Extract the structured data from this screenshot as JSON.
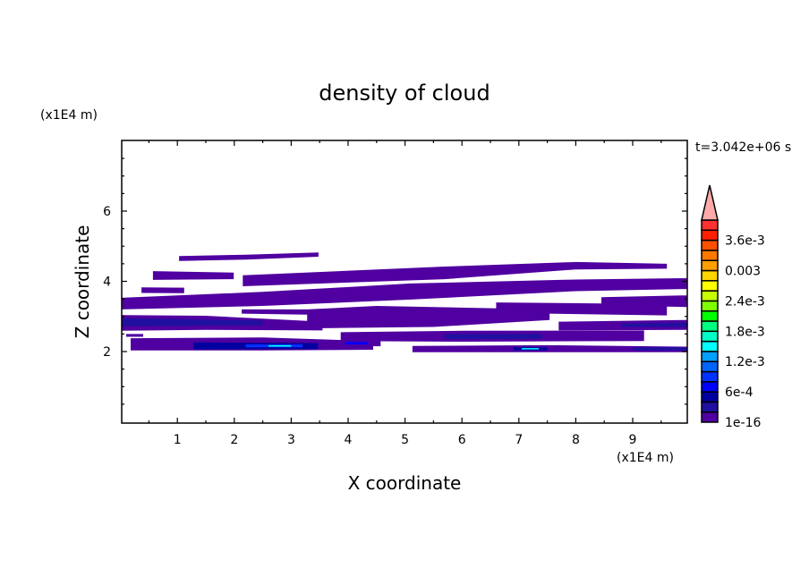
{
  "chart_data": {
    "type": "contour",
    "title": "density of cloud",
    "xlabel": "X coordinate",
    "ylabel": "Z coordinate",
    "x_unit": "(x1E4 m)",
    "y_unit": "(x1E4 m)",
    "time_label": "t=3.042e+06 s",
    "xlim": [
      0,
      10
    ],
    "ylim": [
      0,
      8
    ],
    "x_ticks": [
      "1",
      "2",
      "3",
      "4",
      "5",
      "6",
      "7",
      "8",
      "9"
    ],
    "y_ticks": [
      "2",
      "4",
      "6"
    ],
    "grid": false,
    "colorbar": {
      "placement": "right",
      "levels": [
        1e-16,
        0.0002,
        0.0004,
        0.0006,
        0.0008,
        0.001,
        0.0012,
        0.0014,
        0.0016,
        0.0018,
        0.002,
        0.0022,
        0.0024,
        0.0026,
        0.0028,
        0.003,
        0.0032,
        0.0034,
        0.0036,
        0.0038
      ],
      "labels": [
        "1e-16",
        "6e-4",
        "1.2e-3",
        "1.8e-3",
        "2.4e-3",
        "0.003",
        "3.6e-3"
      ],
      "label_level_indices": [
        0,
        3,
        6,
        9,
        12,
        15,
        18
      ],
      "colors": [
        "#5000a0",
        "#2010a0",
        "#0000a0",
        "#0000ff",
        "#0032ff",
        "#0064ff",
        "#00a0ff",
        "#00ffff",
        "#00ffc8",
        "#00ff80",
        "#00ff00",
        "#80ff00",
        "#c8ff00",
        "#ffff00",
        "#ffd700",
        "#ffa000",
        "#ff7800",
        "#ff5000",
        "#ff2000",
        "#ff3030"
      ],
      "overflow_color": "#ffaaaa"
    },
    "regions": [
      {
        "level": 0,
        "outline": [
          [
            1.03,
            4.72
          ],
          [
            2.2,
            4.76
          ],
          [
            3.48,
            4.82
          ],
          [
            3.48,
            4.7
          ],
          [
            2.2,
            4.62
          ],
          [
            1.03,
            4.58
          ]
        ]
      },
      {
        "level": 0,
        "outline": [
          [
            0.57,
            4.29
          ],
          [
            1.99,
            4.25
          ],
          [
            1.99,
            4.06
          ],
          [
            0.57,
            4.04
          ]
        ]
      },
      {
        "level": 0,
        "outline": [
          [
            2.15,
            4.17
          ],
          [
            5.7,
            4.42
          ],
          [
            8.0,
            4.55
          ],
          [
            9.6,
            4.5
          ],
          [
            9.6,
            4.36
          ],
          [
            8.0,
            4.34
          ],
          [
            5.7,
            4.06
          ],
          [
            2.15,
            3.86
          ]
        ]
      },
      {
        "level": 0,
        "outline": [
          [
            0.37,
            3.83
          ],
          [
            1.12,
            3.82
          ],
          [
            1.12,
            3.66
          ],
          [
            0.37,
            3.67
          ]
        ]
      },
      {
        "level": 0,
        "outline": [
          [
            0,
            3.53
          ],
          [
            2.5,
            3.7
          ],
          [
            5.1,
            3.94
          ],
          [
            8.0,
            4.05
          ],
          [
            9.95,
            4.09
          ],
          [
            9.95,
            3.78
          ],
          [
            8.0,
            3.72
          ],
          [
            5.1,
            3.48
          ],
          [
            2.5,
            3.3
          ],
          [
            0,
            3.2
          ]
        ]
      },
      {
        "level": 0,
        "outline": [
          [
            8.45,
            3.55
          ],
          [
            9.95,
            3.6
          ],
          [
            9.95,
            3.27
          ],
          [
            8.45,
            3.32
          ]
        ]
      },
      {
        "level": 0,
        "outline": [
          [
            6.6,
            3.4
          ],
          [
            9.6,
            3.35
          ],
          [
            9.6,
            3.03
          ],
          [
            6.6,
            3.1
          ]
        ]
      },
      {
        "level": 0,
        "outline": [
          [
            2.13,
            3.2
          ],
          [
            3.28,
            3.2
          ],
          [
            4.5,
            3.3
          ],
          [
            7.54,
            3.2
          ],
          [
            7.54,
            2.9
          ],
          [
            5.5,
            2.7
          ],
          [
            3.28,
            2.66
          ],
          [
            3.28,
            3.05
          ],
          [
            2.13,
            3.08
          ]
        ]
      },
      {
        "level": 0,
        "outline": [
          [
            0,
            3.04
          ],
          [
            1.5,
            3.02
          ],
          [
            3.55,
            2.85
          ],
          [
            3.55,
            2.6
          ],
          [
            1.5,
            2.62
          ],
          [
            0,
            2.59
          ]
        ]
      },
      {
        "level": 1,
        "outline": [
          [
            0,
            2.95
          ],
          [
            2.5,
            2.88
          ],
          [
            2.5,
            2.75
          ],
          [
            0,
            2.72
          ]
        ]
      },
      {
        "level": 0,
        "outline": [
          [
            3.87,
            2.55
          ],
          [
            6.0,
            2.59
          ],
          [
            9.2,
            2.6
          ],
          [
            9.2,
            2.3
          ],
          [
            6.0,
            2.28
          ],
          [
            3.87,
            2.3
          ]
        ]
      },
      {
        "level": 1,
        "outline": [
          [
            5.7,
            2.5
          ],
          [
            7.4,
            2.5
          ],
          [
            7.4,
            2.36
          ],
          [
            5.7,
            2.36
          ]
        ]
      },
      {
        "level": 0,
        "outline": [
          [
            7.7,
            2.85
          ],
          [
            9.95,
            2.9
          ],
          [
            9.95,
            2.62
          ],
          [
            7.7,
            2.6
          ]
        ]
      },
      {
        "level": 1,
        "outline": [
          [
            8.8,
            2.8
          ],
          [
            9.95,
            2.82
          ],
          [
            9.95,
            2.7
          ],
          [
            8.8,
            2.7
          ]
        ]
      },
      {
        "level": 0,
        "outline": [
          [
            0.18,
            2.38
          ],
          [
            2.5,
            2.4
          ],
          [
            4.44,
            2.3
          ],
          [
            4.44,
            2.05
          ],
          [
            2.5,
            2.03
          ],
          [
            0.18,
            2.03
          ]
        ]
      },
      {
        "level": 2,
        "outline": [
          [
            1.28,
            2.26
          ],
          [
            3.47,
            2.24
          ],
          [
            3.47,
            2.07
          ],
          [
            1.28,
            2.06
          ]
        ]
      },
      {
        "level": 4,
        "outline": [
          [
            2.2,
            2.2
          ],
          [
            3.2,
            2.2
          ],
          [
            3.2,
            2.12
          ],
          [
            2.2,
            2.12
          ]
        ]
      },
      {
        "level": 7,
        "outline": [
          [
            2.6,
            2.18
          ],
          [
            3.0,
            2.18
          ],
          [
            3.0,
            2.14
          ],
          [
            2.6,
            2.14
          ]
        ]
      },
      {
        "level": 0,
        "outline": [
          [
            3.8,
            2.33
          ],
          [
            4.57,
            2.3
          ],
          [
            4.57,
            2.15
          ],
          [
            3.8,
            2.17
          ]
        ]
      },
      {
        "level": 3,
        "outline": [
          [
            3.95,
            2.28
          ],
          [
            4.35,
            2.27
          ],
          [
            4.35,
            2.2
          ],
          [
            3.95,
            2.2
          ]
        ]
      },
      {
        "level": 0,
        "outline": [
          [
            5.13,
            2.16
          ],
          [
            7.5,
            2.18
          ],
          [
            9.96,
            2.14
          ],
          [
            9.96,
            1.98
          ],
          [
            7.5,
            1.98
          ],
          [
            5.13,
            1.98
          ]
        ]
      },
      {
        "level": 2,
        "outline": [
          [
            6.9,
            2.12
          ],
          [
            7.5,
            2.12
          ],
          [
            7.5,
            2.03
          ],
          [
            6.9,
            2.03
          ]
        ]
      },
      {
        "level": 7,
        "outline": [
          [
            7.05,
            2.1
          ],
          [
            7.35,
            2.1
          ],
          [
            7.35,
            2.06
          ],
          [
            7.05,
            2.06
          ]
        ]
      },
      {
        "level": 1,
        "outline": [
          [
            9.0,
            2.12
          ],
          [
            9.96,
            2.12
          ],
          [
            9.96,
            2.03
          ],
          [
            9.0,
            2.03
          ]
        ]
      },
      {
        "level": 0,
        "outline": [
          [
            0.1,
            2.5
          ],
          [
            0.4,
            2.5
          ],
          [
            0.4,
            2.42
          ],
          [
            0.1,
            2.42
          ]
        ]
      }
    ]
  }
}
